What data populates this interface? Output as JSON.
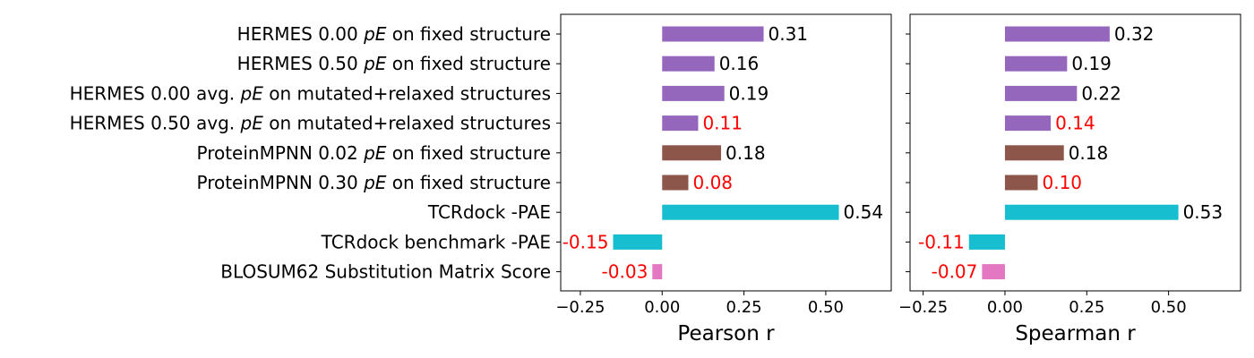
{
  "chart_data": {
    "type": "bar",
    "orientation": "horizontal",
    "categories": [
      [
        "HERMES 0.00 ",
        "pE",
        " on fixed structure"
      ],
      [
        "HERMES 0.50 ",
        "pE",
        " on fixed structure"
      ],
      [
        "HERMES 0.00 avg. ",
        "pE",
        " on mutated+relaxed structures"
      ],
      [
        "HERMES 0.50 avg. ",
        "pE",
        " on mutated+relaxed structures"
      ],
      [
        "ProteinMPNN 0.02 ",
        "pE",
        " on fixed structure"
      ],
      [
        "ProteinMPNN 0.30 ",
        "pE",
        " on fixed structure"
      ],
      [
        "TCRdock -PAE"
      ],
      [
        "TCRdock benchmark -PAE"
      ],
      [
        "BLOSUM62 Substitution Matrix Score"
      ]
    ],
    "bar_colors": [
      "#9467bd",
      "#9467bd",
      "#9467bd",
      "#9467bd",
      "#8c564b",
      "#8c564b",
      "#17becf",
      "#17becf",
      "#e377c2"
    ],
    "panels": [
      {
        "xlabel": "Pearson r",
        "xlim": [
          -0.31,
          0.7
        ],
        "xticks": [
          -0.25,
          0.0,
          0.25,
          0.5
        ],
        "xtick_labels": [
          "−0.25",
          "0.00",
          "0.25",
          "0.50"
        ],
        "values": [
          0.31,
          0.16,
          0.19,
          0.11,
          0.18,
          0.08,
          0.54,
          -0.15,
          -0.03
        ],
        "labels": [
          "0.31",
          "0.16",
          "0.19",
          "0.11",
          "0.18",
          "0.08",
          "0.54",
          "-0.15",
          "-0.03"
        ],
        "label_colors": [
          "#000000",
          "#000000",
          "#000000",
          "#ff0000",
          "#000000",
          "#ff0000",
          "#000000",
          "#ff0000",
          "#ff0000"
        ]
      },
      {
        "xlabel": "Spearman r",
        "xlim": [
          -0.29,
          0.72
        ],
        "xticks": [
          -0.25,
          0.0,
          0.25,
          0.5
        ],
        "xtick_labels": [
          "−0.25",
          "0.00",
          "0.25",
          "0.50"
        ],
        "values": [
          0.32,
          0.19,
          0.22,
          0.14,
          0.18,
          0.1,
          0.53,
          -0.11,
          -0.07
        ],
        "labels": [
          "0.32",
          "0.19",
          "0.22",
          "0.14",
          "0.18",
          "0.10",
          "0.53",
          "-0.11",
          "-0.07"
        ],
        "label_colors": [
          "#000000",
          "#000000",
          "#000000",
          "#ff0000",
          "#000000",
          "#ff0000",
          "#000000",
          "#ff0000",
          "#ff0000"
        ]
      }
    ]
  }
}
